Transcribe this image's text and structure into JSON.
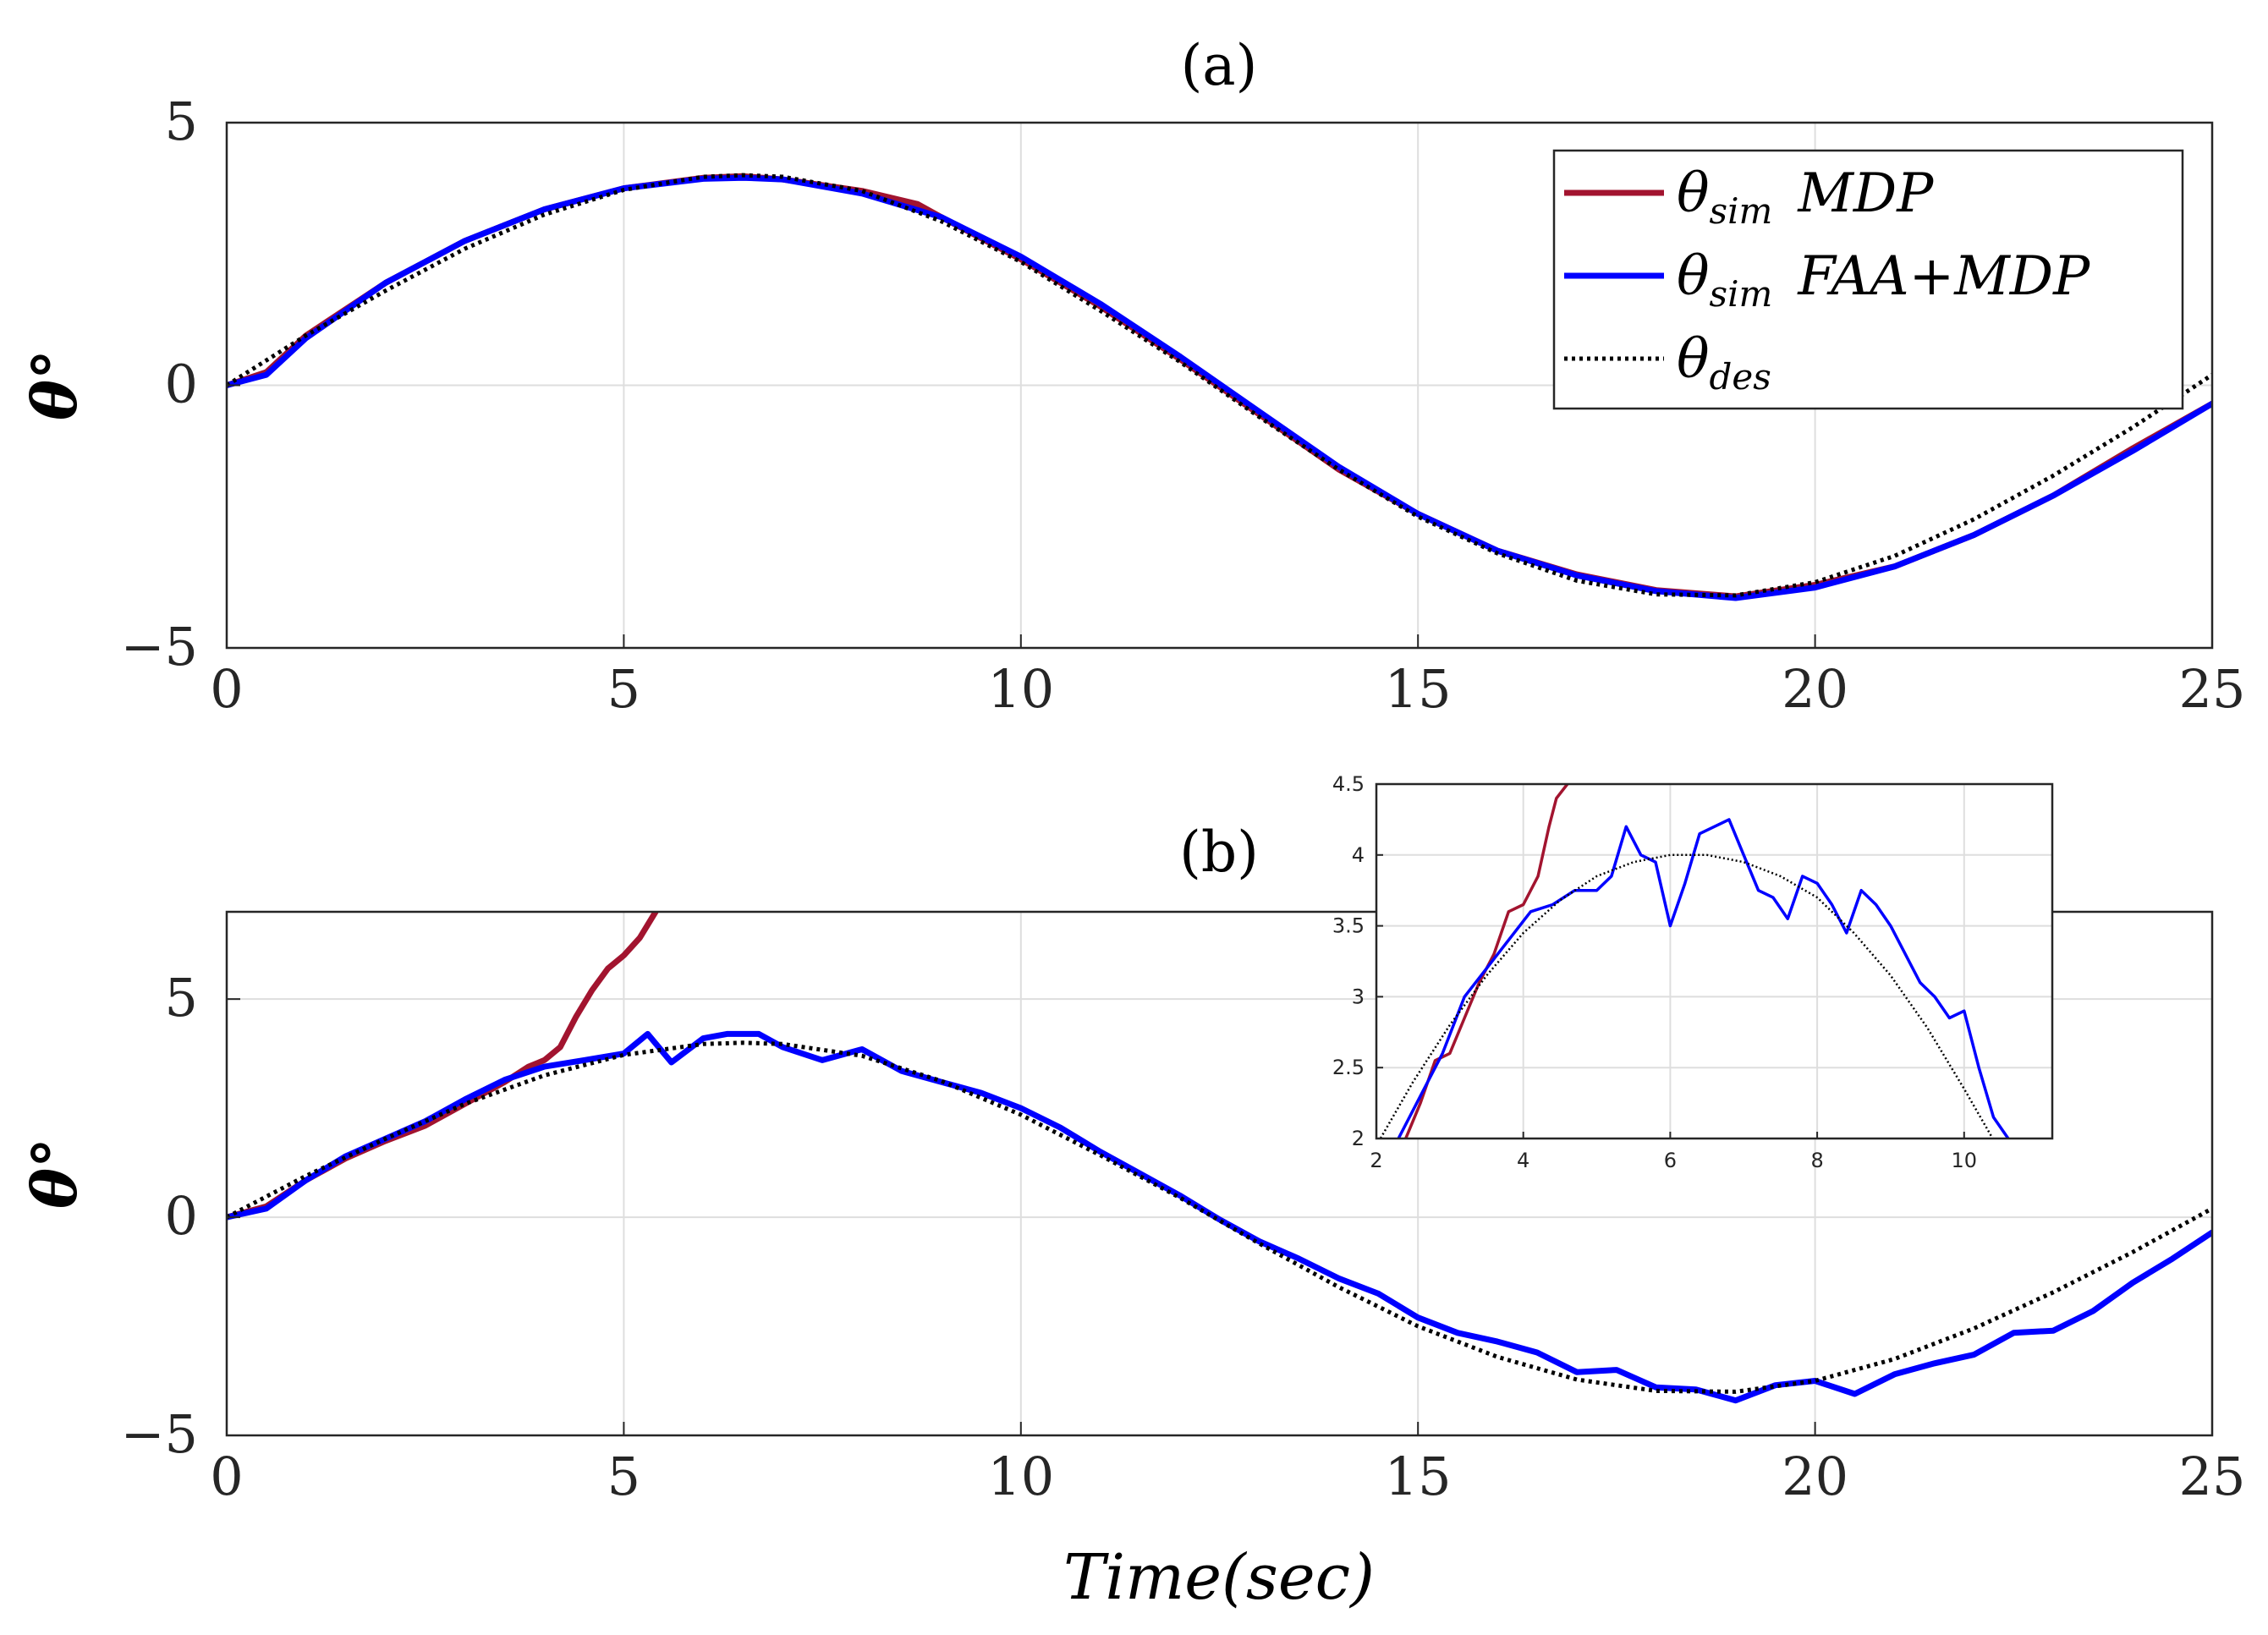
{
  "chart_data": [
    {
      "type": "line",
      "title": "(a)",
      "xlabel": "",
      "ylabel": "θ°",
      "xlim": [
        0,
        25
      ],
      "ylim": [
        -5,
        5
      ],
      "xticks": [
        0,
        5,
        10,
        15,
        20,
        25
      ],
      "yticks": [
        -5,
        0,
        5
      ],
      "ytick_labels": [
        "−5",
        "0",
        "5"
      ],
      "grid": true,
      "legend_position": "top-right",
      "series": [
        {
          "name": "θsim MDP",
          "legend_base": "θ",
          "legend_sub": "sim",
          "legend_tail": "MDP",
          "color": "#a2142f",
          "style": "solid",
          "x": [
            0,
            0.5,
            1,
            2,
            3,
            4,
            5,
            6,
            6.5,
            7,
            8,
            8.7,
            9,
            10,
            11,
            12,
            13,
            14,
            15,
            16,
            17,
            18,
            19,
            20,
            21,
            22,
            23,
            24,
            25
          ],
          "y": [
            0,
            0.25,
            0.95,
            1.95,
            2.75,
            3.35,
            3.75,
            3.95,
            3.98,
            3.92,
            3.7,
            3.45,
            3.2,
            2.4,
            1.5,
            0.5,
            -0.55,
            -1.6,
            -2.45,
            -3.15,
            -3.6,
            -3.9,
            -4.02,
            -3.8,
            -3.45,
            -2.85,
            -2.1,
            -1.2,
            -0.35
          ]
        },
        {
          "name": "θsim FAA+MDP",
          "legend_base": "θ",
          "legend_sub": "sim",
          "legend_tail": "FAA+MDP",
          "color": "#0000ff",
          "style": "solid",
          "x": [
            0,
            0.5,
            1,
            2,
            3,
            4,
            5,
            6,
            6.5,
            7,
            8,
            9,
            10,
            11,
            12,
            13,
            14,
            15,
            16,
            17,
            18,
            19,
            20,
            21,
            22,
            23,
            24,
            25
          ],
          "y": [
            0,
            0.2,
            0.9,
            1.95,
            2.75,
            3.35,
            3.75,
            3.93,
            3.95,
            3.92,
            3.65,
            3.2,
            2.45,
            1.55,
            0.55,
            -0.5,
            -1.55,
            -2.45,
            -3.15,
            -3.62,
            -3.92,
            -4.05,
            -3.85,
            -3.45,
            -2.85,
            -2.1,
            -1.25,
            -0.35
          ]
        },
        {
          "name": "θdes",
          "legend_base": "θ",
          "legend_sub": "des",
          "legend_tail": "",
          "color": "#000000",
          "style": "dotted",
          "x": [
            0,
            1,
            2,
            3,
            4,
            5,
            6,
            6.5,
            7,
            8,
            9,
            10,
            11,
            12,
            13,
            14,
            15,
            16,
            17,
            18,
            19,
            20,
            21,
            22,
            23,
            24,
            25
          ],
          "y": [
            0,
            0.95,
            1.8,
            2.6,
            3.25,
            3.72,
            3.97,
            4.0,
            3.97,
            3.7,
            3.12,
            2.35,
            1.42,
            0.45,
            -0.6,
            -1.6,
            -2.5,
            -3.2,
            -3.72,
            -3.98,
            -4.0,
            -3.75,
            -3.25,
            -2.55,
            -1.72,
            -0.8,
            0.2
          ]
        }
      ]
    },
    {
      "type": "line",
      "title": "(b)",
      "xlabel": "Time(sec)",
      "ylabel": "θ°",
      "xlim": [
        0,
        25
      ],
      "ylim": [
        -5,
        7
      ],
      "xticks": [
        0,
        5,
        10,
        15,
        20,
        25
      ],
      "yticks": [
        -5,
        0,
        5
      ],
      "ytick_labels": [
        "−5",
        "0",
        "5"
      ],
      "grid": true,
      "series": [
        {
          "name": "θsim MDP",
          "color": "#a2142f",
          "style": "solid",
          "x": [
            0,
            0.5,
            1,
            1.5,
            2,
            2.5,
            3,
            3.5,
            3.8,
            4.0,
            4.2,
            4.4,
            4.6,
            4.8,
            5.0,
            5.2,
            5.4
          ],
          "y": [
            0,
            0.25,
            0.85,
            1.35,
            1.75,
            2.1,
            2.6,
            3.1,
            3.45,
            3.6,
            3.9,
            4.6,
            5.2,
            5.7,
            6.0,
            6.4,
            7.0
          ]
        },
        {
          "name": "θsim FAA+MDP",
          "color": "#0000ff",
          "style": "solid",
          "x": [
            0,
            0.5,
            1,
            1.5,
            2,
            2.5,
            3,
            3.5,
            4,
            4.5,
            5,
            5.3,
            5.6,
            6,
            6.3,
            6.7,
            7,
            7.5,
            8,
            8.5,
            9,
            9.5,
            10,
            10.5,
            11,
            11.5,
            12,
            12.5,
            13,
            13.5,
            14,
            14.5,
            15,
            15.5,
            16,
            16.5,
            17,
            17.5,
            18,
            18.5,
            19,
            19.5,
            20,
            20.5,
            21,
            21.5,
            22,
            22.5,
            23,
            23.5,
            24,
            24.5,
            25
          ],
          "y": [
            0,
            0.2,
            0.85,
            1.4,
            1.8,
            2.2,
            2.7,
            3.15,
            3.45,
            3.6,
            3.75,
            4.2,
            3.55,
            4.1,
            4.2,
            4.2,
            3.9,
            3.6,
            3.85,
            3.35,
            3.1,
            2.85,
            2.5,
            2.05,
            1.5,
            1.0,
            0.5,
            -0.05,
            -0.55,
            -0.95,
            -1.4,
            -1.75,
            -2.3,
            -2.65,
            -2.85,
            -3.1,
            -3.55,
            -3.5,
            -3.9,
            -3.95,
            -4.2,
            -3.85,
            -3.75,
            -4.05,
            -3.6,
            -3.35,
            -3.15,
            -2.65,
            -2.6,
            -2.15,
            -1.5,
            -0.95,
            -0.35
          ]
        },
        {
          "name": "θdes",
          "color": "#000000",
          "style": "dotted",
          "x": [
            0,
            1,
            2,
            3,
            4,
            5,
            6,
            6.5,
            7,
            8,
            9,
            10,
            11,
            12,
            13,
            14,
            15,
            16,
            17,
            18,
            19,
            20,
            21,
            22,
            23,
            24,
            25
          ],
          "y": [
            0,
            0.95,
            1.8,
            2.6,
            3.25,
            3.72,
            3.97,
            4.0,
            3.97,
            3.7,
            3.12,
            2.35,
            1.42,
            0.45,
            -0.6,
            -1.6,
            -2.5,
            -3.2,
            -3.72,
            -3.98,
            -4.0,
            -3.75,
            -3.25,
            -2.55,
            -1.72,
            -0.8,
            0.2
          ]
        }
      ]
    },
    {
      "type": "line",
      "title": "",
      "xlabel": "",
      "ylabel": "",
      "xlim": [
        2,
        11.2
      ],
      "ylim": [
        2,
        4.5
      ],
      "xticks": [
        2,
        4,
        6,
        8,
        10
      ],
      "yticks": [
        2,
        2.5,
        3,
        3.5,
        4,
        4.5
      ],
      "ytick_labels": [
        "2",
        "2.5",
        "3",
        "3.5",
        "4",
        "4.5"
      ],
      "grid": true,
      "series": [
        {
          "name": "θsim MDP",
          "color": "#a2142f",
          "style": "solid",
          "x": [
            2.4,
            2.6,
            2.8,
            3.0,
            3.2,
            3.4,
            3.6,
            3.8,
            4.0,
            4.2,
            4.35,
            4.45,
            4.6
          ],
          "y": [
            2.0,
            2.25,
            2.55,
            2.6,
            2.85,
            3.1,
            3.3,
            3.6,
            3.65,
            3.85,
            4.2,
            4.4,
            4.5
          ]
        },
        {
          "name": "θsim FAA+MDP",
          "color": "#0000ff",
          "style": "solid",
          "x": [
            2.3,
            2.6,
            2.9,
            3.2,
            3.5,
            3.8,
            4.1,
            4.4,
            4.7,
            5.0,
            5.2,
            5.4,
            5.6,
            5.8,
            6.0,
            6.2,
            6.4,
            6.6,
            6.8,
            7.0,
            7.2,
            7.4,
            7.6,
            7.8,
            8.0,
            8.2,
            8.4,
            8.6,
            8.8,
            9.0,
            9.2,
            9.4,
            9.6,
            9.8,
            10.0,
            10.2,
            10.4,
            10.6
          ],
          "y": [
            2.0,
            2.3,
            2.6,
            3.0,
            3.2,
            3.4,
            3.6,
            3.65,
            3.75,
            3.75,
            3.85,
            4.2,
            4.0,
            3.95,
            3.5,
            3.8,
            4.15,
            4.2,
            4.25,
            4.0,
            3.75,
            3.7,
            3.55,
            3.85,
            3.8,
            3.65,
            3.45,
            3.75,
            3.65,
            3.5,
            3.3,
            3.1,
            3.0,
            2.85,
            2.9,
            2.5,
            2.15,
            2.0
          ]
        },
        {
          "name": "θdes",
          "color": "#000000",
          "style": "dotted",
          "x": [
            2.0,
            2.5,
            3.0,
            3.5,
            4.0,
            4.5,
            5.0,
            5.5,
            6.0,
            6.5,
            7.0,
            7.5,
            8.0,
            8.5,
            9.0,
            9.5,
            10.0,
            10.5,
            11.0
          ],
          "y": [
            1.95,
            2.4,
            2.8,
            3.15,
            3.45,
            3.68,
            3.85,
            3.95,
            4.0,
            4.0,
            3.95,
            3.85,
            3.7,
            3.45,
            3.15,
            2.78,
            2.35,
            1.9,
            1.4
          ]
        }
      ]
    }
  ]
}
